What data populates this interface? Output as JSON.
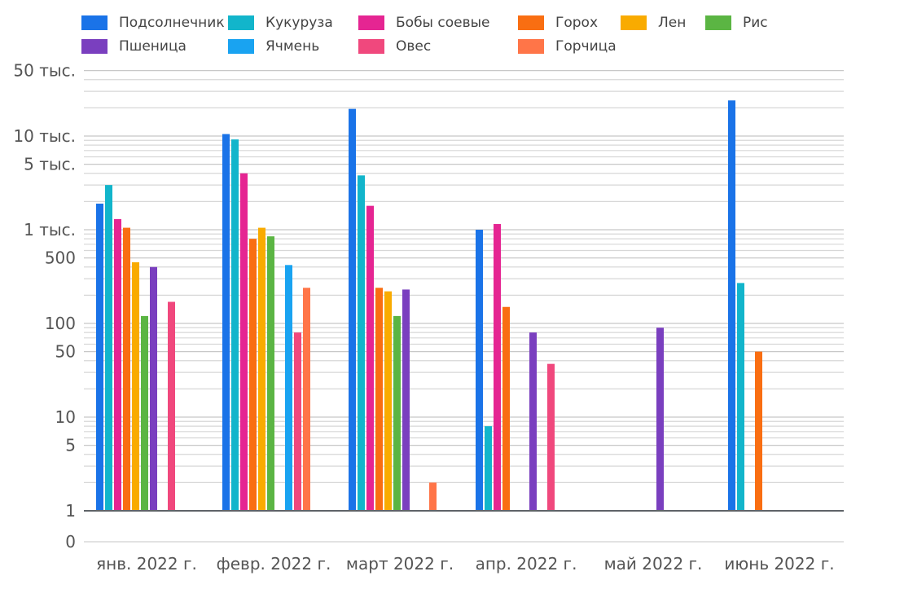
{
  "chart_data": {
    "type": "bar",
    "title": "",
    "xlabel": "",
    "ylabel": "",
    "yscale": "log",
    "grid": true,
    "legend_position": "top",
    "categories": [
      "янв. 2022 г.",
      "февр. 2022 г.",
      "март 2022 г.",
      "апр. 2022 г.",
      "май 2022 г.",
      "июнь 2022 г."
    ],
    "y_ticks": [
      {
        "value": 0,
        "label": "0"
      },
      {
        "value": 1,
        "label": "1"
      },
      {
        "value": 5,
        "label": "5"
      },
      {
        "value": 10,
        "label": "10"
      },
      {
        "value": 50,
        "label": "50"
      },
      {
        "value": 100,
        "label": "100"
      },
      {
        "value": 500,
        "label": "500"
      },
      {
        "value": 1000,
        "label": "1 тыс."
      },
      {
        "value": 5000,
        "label": "5 тыс."
      },
      {
        "value": 10000,
        "label": "10 тыс."
      },
      {
        "value": 50000,
        "label": "50 тыс."
      }
    ],
    "series": [
      {
        "name": "Подсолнечник",
        "color": "#1a73e8",
        "values": [
          1900,
          10500,
          19500,
          1000,
          null,
          24000
        ]
      },
      {
        "name": "Кукуруза",
        "color": "#12b5cb",
        "values": [
          3000,
          9200,
          3800,
          8,
          null,
          270
        ]
      },
      {
        "name": "Бобы соевые",
        "color": "#e52592",
        "values": [
          1300,
          4000,
          1800,
          1150,
          null,
          null
        ]
      },
      {
        "name": "Горох",
        "color": "#f96e12",
        "values": [
          1050,
          800,
          240,
          150,
          null,
          50
        ]
      },
      {
        "name": "Лен",
        "color": "#f9ab00",
        "values": [
          450,
          1050,
          220,
          null,
          null,
          null
        ]
      },
      {
        "name": "Рис",
        "color": "#5bb543",
        "values": [
          120,
          850,
          120,
          null,
          null,
          null
        ]
      },
      {
        "name": "Пшеница",
        "color": "#7a3fbf",
        "values": [
          400,
          null,
          230,
          80,
          90,
          null
        ]
      },
      {
        "name": "Ячмень",
        "color": "#19a3f1",
        "values": [
          null,
          420,
          null,
          null,
          null,
          null
        ]
      },
      {
        "name": "Овес",
        "color": "#f0487d",
        "values": [
          170,
          80,
          null,
          37,
          null,
          null
        ]
      },
      {
        "name": "Горчица",
        "color": "#ff7548",
        "values": [
          null,
          240,
          2,
          null,
          null,
          null
        ]
      }
    ]
  }
}
